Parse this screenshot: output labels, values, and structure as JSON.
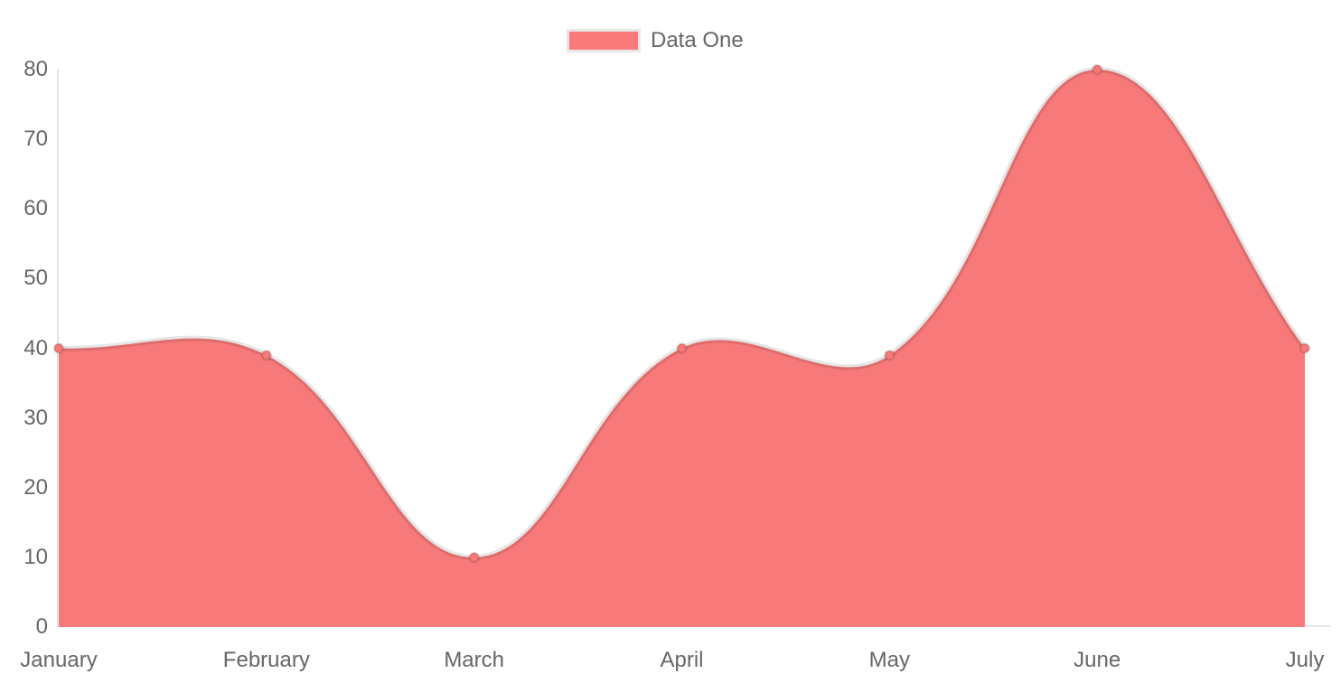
{
  "chart_data": {
    "type": "area",
    "title": "",
    "categories": [
      "January",
      "February",
      "March",
      "April",
      "May",
      "June",
      "July"
    ],
    "series": [
      {
        "name": "Data One",
        "values": [
          40,
          39,
          10,
          40,
          39,
          80,
          40
        ]
      }
    ],
    "xlabel": "",
    "ylabel": "",
    "ylim": [
      0,
      80
    ],
    "y_ticks": [
      0,
      10,
      20,
      30,
      40,
      50,
      60,
      70,
      80
    ],
    "grid": "off",
    "legend_position": "top",
    "line_style": "smooth-bezier",
    "colors": {
      "fill": "#f87979",
      "line": "rgba(0,0,0,0.10)",
      "point_fill": "#f87979",
      "point_border": "rgba(0,0,0,0.12)",
      "axis_line": "rgba(0,0,0,0.10)",
      "tick_text": "#666666"
    }
  }
}
